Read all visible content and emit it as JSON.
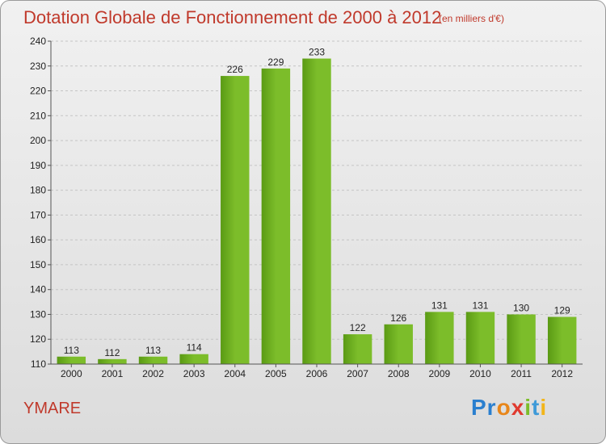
{
  "chart_data": {
    "type": "bar",
    "title": "Dotation Globale de Fonctionnement de 2000 à 2012",
    "subtitle": "(en milliers d'€)",
    "categories": [
      "2000",
      "2001",
      "2002",
      "2003",
      "2004",
      "2005",
      "2006",
      "2007",
      "2008",
      "2009",
      "2010",
      "2011",
      "2012"
    ],
    "values": [
      113,
      112,
      113,
      114,
      226,
      229,
      233,
      122,
      126,
      131,
      131,
      130,
      129
    ],
    "ylim": [
      110,
      240
    ],
    "yticks": [
      110,
      120,
      130,
      140,
      150,
      160,
      170,
      180,
      190,
      200,
      210,
      220,
      230,
      240
    ],
    "grid": true,
    "bar_color": "#7cbd2a",
    "bar_color_dark": "#5a9a14"
  },
  "commune": "YMARE",
  "logo": [
    "Pr",
    "o",
    "x",
    "i",
    "t",
    "i"
  ]
}
